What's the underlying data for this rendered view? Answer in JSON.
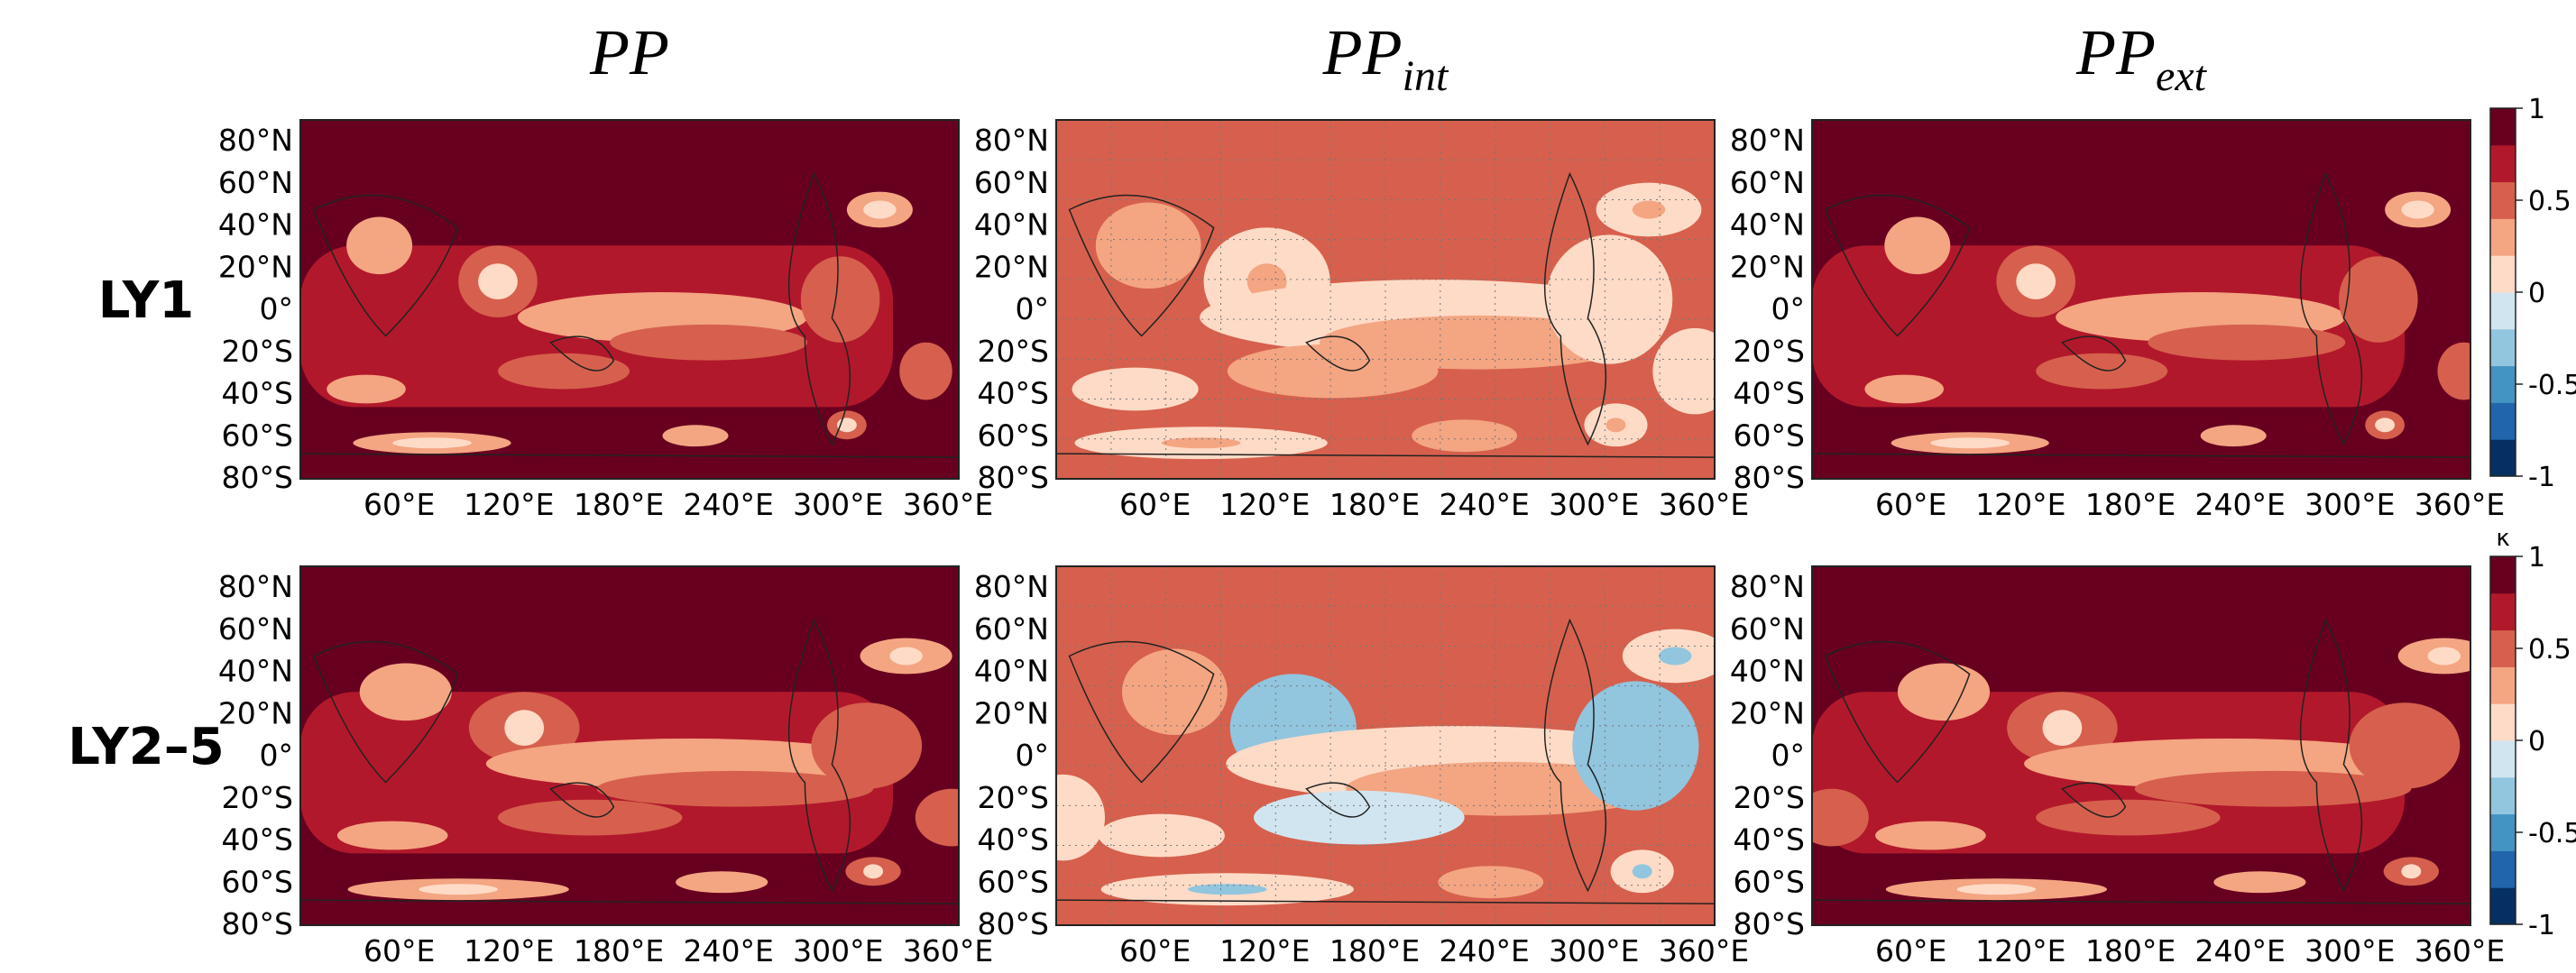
{
  "columns": [
    {
      "title": "PP"
    },
    {
      "title": "PP",
      "subscript": "int"
    },
    {
      "title": "PP",
      "subscript": "ext"
    }
  ],
  "rows": [
    {
      "label": "LY1"
    },
    {
      "label": "LY2–5"
    }
  ],
  "lat_ticks": [
    "80°N",
    "60°N",
    "40°N",
    "20°N",
    "0°",
    "20°S",
    "40°S",
    "60°S",
    "80°S"
  ],
  "lon_ticks": [
    "60°E",
    "120°E",
    "180°E",
    "240°E",
    "300°E",
    "360°E"
  ],
  "colorbar": {
    "label": "κ",
    "ticks": [
      1,
      0.5,
      0,
      -0.5,
      -1
    ],
    "range": [
      -1,
      1
    ],
    "colors": [
      "#053061",
      "#2166ac",
      "#4393c3",
      "#92c5de",
      "#d1e5f0",
      "#fddbc7",
      "#f4a582",
      "#d6604d",
      "#b2182b",
      "#67001f"
    ]
  }
}
